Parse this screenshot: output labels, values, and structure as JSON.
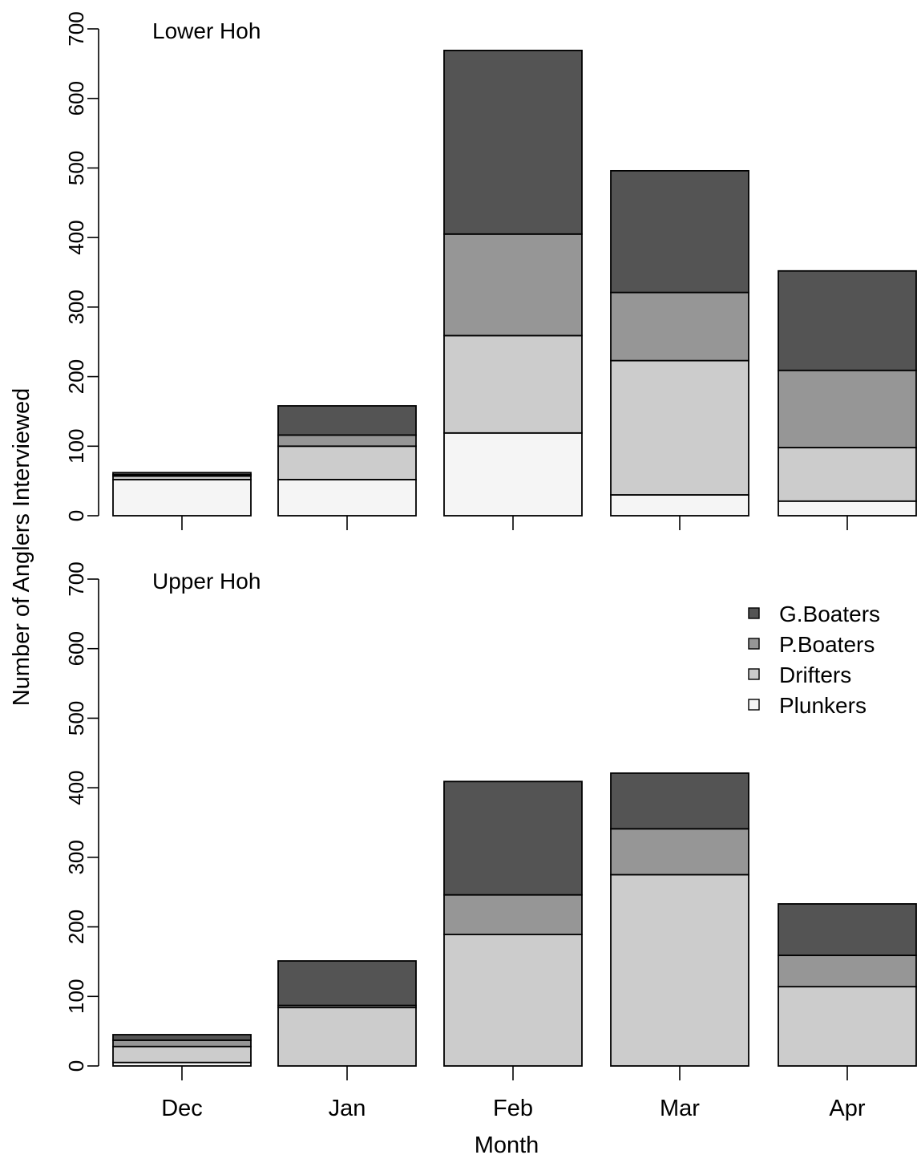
{
  "chart_data": {
    "type": "bar",
    "stacked": true,
    "xlabel": "Month",
    "ylabel": "Number of Anglers Interviewed",
    "categories": [
      "Dec",
      "Jan",
      "Feb",
      "Mar",
      "Apr"
    ],
    "ylim": [
      0,
      700
    ],
    "yticks": [
      "0",
      "100",
      "200",
      "300",
      "400",
      "500",
      "600",
      "700"
    ],
    "legend": {
      "placement": "top-right",
      "panel": "Upper Hoh"
    },
    "grid": false,
    "series_colors": {
      "G.Boaters": "#545454",
      "P.Boaters": "#969696",
      "Drifters": "#cccccc",
      "Plunkers": "#f5f5f5"
    },
    "legend_order": [
      "G.Boaters",
      "P.Boaters",
      "Drifters",
      "Plunkers"
    ],
    "panels": [
      {
        "label": "Lower Hoh",
        "series": [
          {
            "name": "Plunkers",
            "values": [
              52,
              52,
              119,
              30,
              21
            ]
          },
          {
            "name": "Drifters",
            "values": [
              5,
              48,
              140,
              193,
              77
            ]
          },
          {
            "name": "P.Boaters",
            "values": [
              2,
              16,
              146,
              98,
              111
            ]
          },
          {
            "name": "G.Boaters",
            "values": [
              3,
              42,
              264,
              175,
              143
            ]
          }
        ]
      },
      {
        "label": "Upper Hoh",
        "series": [
          {
            "name": "Plunkers",
            "values": [
              5,
              0,
              0,
              0,
              0
            ]
          },
          {
            "name": "Drifters",
            "values": [
              23,
              84,
              189,
              275,
              114
            ]
          },
          {
            "name": "P.Boaters",
            "values": [
              9,
              3,
              57,
              66,
              45
            ]
          },
          {
            "name": "G.Boaters",
            "values": [
              8,
              64,
              163,
              80,
              74
            ]
          }
        ]
      }
    ]
  }
}
